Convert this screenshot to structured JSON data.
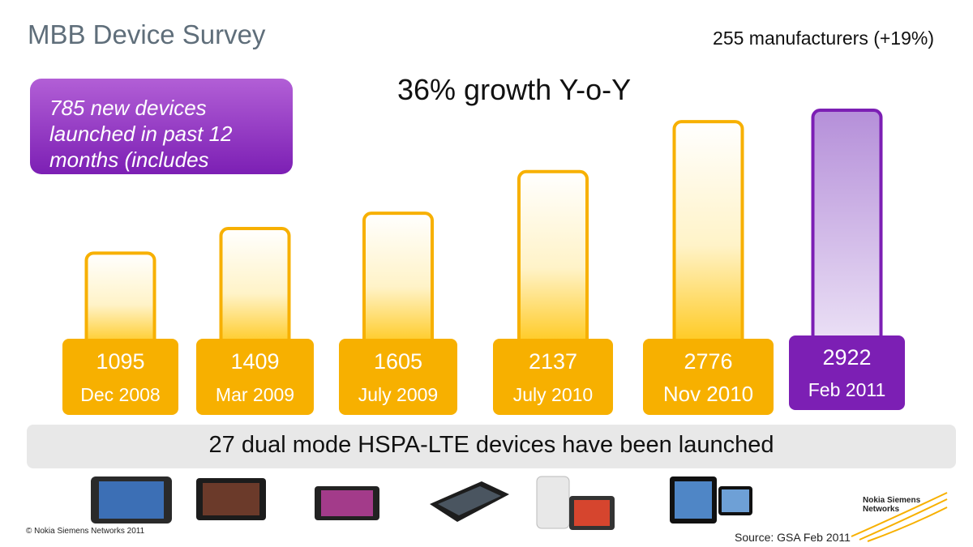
{
  "header": {
    "title": "MBB Device Survey",
    "manufacturers": "255 manufacturers (+19%)"
  },
  "headline": "36% growth Y-o-Y",
  "callout": "785 new devices launched in past 12 months (includes",
  "band_text": "27 dual mode HSPA-LTE devices have been launched",
  "footer": {
    "copyright": "© Nokia Siemens Networks 2011",
    "source": "Source: GSA Feb 2011",
    "logo_text": "Nokia Siemens Networks"
  },
  "colors": {
    "orange": "#f7b000",
    "purple": "#7c1fb4",
    "purple_light": "#b892d8"
  },
  "device_icons": [
    "tablet-icon",
    "tablet-icon",
    "tablet-icon",
    "tablet-icon",
    "tablet-icon",
    "tablet-icon"
  ],
  "chart_data": {
    "type": "bar",
    "categories": [
      "Dec 2008",
      "Mar 2009",
      "July 2009",
      "July 2010",
      "Nov 2010",
      "Feb 2011"
    ],
    "values": [
      1095,
      1409,
      1605,
      2137,
      2776,
      2922
    ],
    "value_labels": [
      "1095",
      "1409",
      "1605",
      "2137",
      "2776",
      "2922"
    ],
    "highlight_index": 5
  }
}
